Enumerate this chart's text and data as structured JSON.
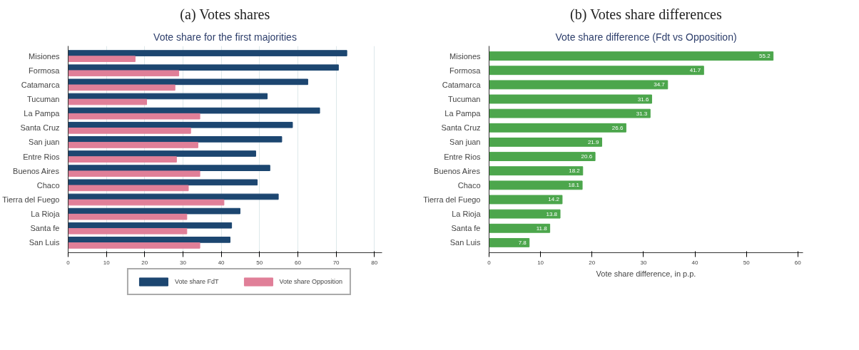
{
  "chart_data": [
    {
      "type": "bar",
      "orientation": "horizontal",
      "title": "(a) Votes shares",
      "subtitle": "Vote share for the first majorities",
      "categories": [
        "Misiones",
        "Formosa",
        "Catamarca",
        "Tucuman",
        "La Pampa",
        "Santa Cruz",
        "San juan",
        "Entre Rios",
        "Buenos Aires",
        "Chaco",
        "Tierra del Fuego",
        "La Rioja",
        "Santa fe",
        "San Luis"
      ],
      "series": [
        {
          "name": "Vote share FdT",
          "color": "#1c4670",
          "values": [
            72.8,
            70.6,
            62.6,
            52.0,
            65.7,
            58.6,
            55.8,
            49.0,
            52.7,
            49.4,
            54.9,
            44.9,
            42.7,
            42.3
          ]
        },
        {
          "name": "Vote share Opposition",
          "color": "#e07f98",
          "values": [
            17.5,
            28.9,
            27.9,
            20.5,
            34.4,
            32.0,
            33.9,
            28.3,
            34.4,
            31.4,
            40.7,
            31.0,
            31.0,
            34.4
          ]
        }
      ],
      "xlim": [
        0,
        82
      ],
      "xticks": [
        0,
        10,
        20,
        30,
        40,
        50,
        60,
        70,
        80
      ],
      "grid": "x",
      "legend": "bottom"
    },
    {
      "type": "bar",
      "orientation": "horizontal",
      "title": "(b) Votes share differences",
      "subtitle": "Vote share difference (Fdt vs Opposition)",
      "xlabel": "Vote share difference, in p.p.",
      "categories": [
        "Misiones",
        "Formosa",
        "Catamarca",
        "Tucuman",
        "La Pampa",
        "Santa Cruz",
        "San juan",
        "Entre Rios",
        "Buenos Aires",
        "Chaco",
        "Tierra del Fuego",
        "La Rioja",
        "Santa fe",
        "San Luis"
      ],
      "series": [
        {
          "color": "#4ca64c",
          "values": [
            55.2,
            41.7,
            34.7,
            31.6,
            31.3,
            26.6,
            21.9,
            20.6,
            18.2,
            18.1,
            14.2,
            13.8,
            11.8,
            7.8
          ],
          "value_labels": [
            "55.2",
            "41.7",
            "34.7",
            "31.6",
            "31.3",
            "26.6",
            "21.9",
            "20.6",
            "18.2",
            "18.1",
            "14.2",
            "13.8",
            "11.8",
            "7.8"
          ]
        }
      ],
      "xlim": [
        0,
        61
      ],
      "xticks": [
        0,
        10,
        20,
        30,
        40,
        50,
        60
      ],
      "grid": false
    }
  ]
}
